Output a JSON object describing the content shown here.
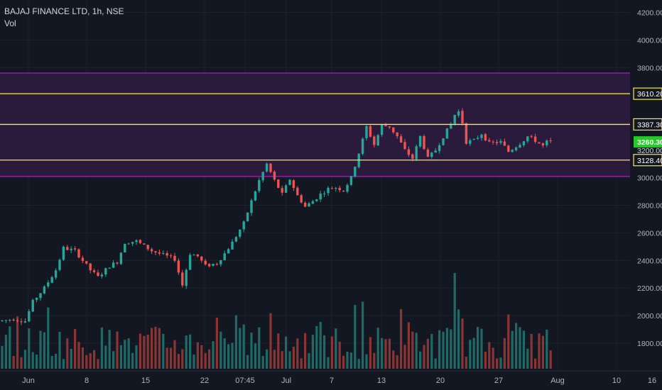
{
  "header": {
    "symbol_line": "BAJAJ FINANCE LTD, 1h, NSE",
    "indicator": "Vol"
  },
  "colors": {
    "background": "#131722",
    "grid": "#1e222d",
    "up": "#26a69a",
    "down": "#ef5350",
    "up_volume": "#1f6a66",
    "down_volume": "#8b3434",
    "zone_fill": "#2a1b3d",
    "zone_border": "#9c27b0",
    "level_line": "#ffeb3b",
    "axis_text": "#b2b5be",
    "last_price_bg": "#26c92a"
  },
  "chart_data": {
    "type": "candlestick",
    "x_ticks": [
      "Jun",
      "8",
      "15",
      "22",
      "07:45",
      "Jul",
      "7",
      "13",
      "20",
      "27",
      "Aug",
      "10",
      "16"
    ],
    "y_ticks": [
      "1800.00",
      "2000.00",
      "2200.00",
      "2400.00",
      "2600.00",
      "2800.00",
      "3000.00",
      "3200.00",
      "3800.00",
      "4000.00",
      "4200.00"
    ],
    "ylim": [
      1620,
      4240
    ],
    "grid": true,
    "price_waypoints": [
      [
        0,
        1960
      ],
      [
        4,
        1975
      ],
      [
        7,
        1960
      ],
      [
        9,
        2100
      ],
      [
        12,
        2200
      ],
      [
        15,
        2330
      ],
      [
        17,
        2490
      ],
      [
        20,
        2470
      ],
      [
        24,
        2330
      ],
      [
        26,
        2280
      ],
      [
        29,
        2360
      ],
      [
        31,
        2390
      ],
      [
        33,
        2530
      ],
      [
        36,
        2540
      ],
      [
        40,
        2470
      ],
      [
        44,
        2430
      ],
      [
        46,
        2410
      ],
      [
        48,
        2220
      ],
      [
        50,
        2450
      ],
      [
        52,
        2430
      ],
      [
        54,
        2360
      ],
      [
        57,
        2380
      ],
      [
        59,
        2450
      ],
      [
        61,
        2530
      ],
      [
        64,
        2670
      ],
      [
        66,
        2830
      ],
      [
        68,
        2980
      ],
      [
        70,
        3100
      ],
      [
        72,
        2980
      ],
      [
        74,
        2880
      ],
      [
        76,
        2990
      ],
      [
        78,
        2870
      ],
      [
        80,
        2790
      ],
      [
        82,
        2830
      ],
      [
        84,
        2880
      ],
      [
        86,
        2920
      ],
      [
        88,
        2930
      ],
      [
        90,
        2910
      ],
      [
        92,
        3000
      ],
      [
        94,
        3180
      ],
      [
        96,
        3370
      ],
      [
        98,
        3240
      ],
      [
        100,
        3380
      ],
      [
        102,
        3370
      ],
      [
        104,
        3300
      ],
      [
        106,
        3200
      ],
      [
        108,
        3140
      ],
      [
        110,
        3300
      ],
      [
        112,
        3140
      ],
      [
        114,
        3200
      ],
      [
        116,
        3300
      ],
      [
        118,
        3390
      ],
      [
        119.5,
        3490
      ],
      [
        120.5,
        3470
      ],
      [
        122,
        3260
      ],
      [
        124,
        3270
      ],
      [
        126,
        3320
      ],
      [
        128,
        3250
      ],
      [
        131,
        3260
      ],
      [
        133,
        3190
      ],
      [
        136,
        3250
      ],
      [
        138,
        3300
      ],
      [
        140,
        3270
      ],
      [
        142,
        3230
      ],
      [
        143,
        3260
      ]
    ],
    "volume_ylim": [
      0,
      100
    ],
    "zone": {
      "top": 3760,
      "bottom": 3010
    },
    "levels": [
      {
        "value": 3610.2,
        "label": "3610.20"
      },
      {
        "value": 3387.3,
        "label": "3387.30"
      },
      {
        "value": 3128.4,
        "label": "3128.40"
      }
    ],
    "last_price": {
      "value": 3260.3,
      "label": "3260.30"
    },
    "partial_tick_label": "3200.00"
  }
}
